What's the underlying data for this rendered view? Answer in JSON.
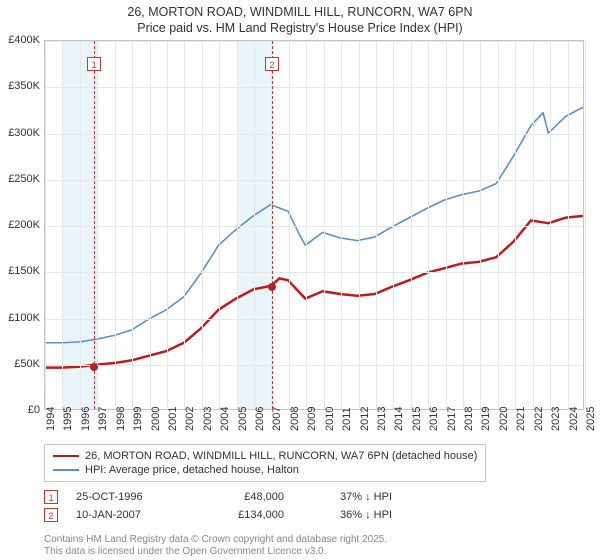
{
  "title_line1": "26, MORTON ROAD, WINDMILL HILL, RUNCORN, WA7 6PN",
  "title_line2": "Price paid vs. HM Land Registry's House Price Index (HPI)",
  "chart": {
    "type": "line",
    "x_years": [
      1994,
      1995,
      1996,
      1997,
      1998,
      1999,
      2000,
      2001,
      2002,
      2003,
      2004,
      2005,
      2006,
      2007,
      2008,
      2009,
      2010,
      2011,
      2012,
      2013,
      2014,
      2015,
      2016,
      2017,
      2018,
      2019,
      2020,
      2021,
      2022,
      2023,
      2024,
      2025
    ],
    "ylim": [
      0,
      400000
    ],
    "yticks": [
      0,
      50000,
      100000,
      150000,
      200000,
      250000,
      300000,
      350000,
      400000
    ],
    "ytick_labels": [
      "£0",
      "£50K",
      "£100K",
      "£150K",
      "£200K",
      "£250K",
      "£300K",
      "£350K",
      "£400K"
    ],
    "grid_color": "#e5e8ea",
    "background_color": "#ffffff",
    "band_color": "#eaf4fb",
    "bands": [
      [
        1995,
        1997
      ],
      [
        2005,
        2007
      ]
    ],
    "series": [
      {
        "name": "price_paid",
        "label": "26, MORTON ROAD, WINDMILL HILL, RUNCORN, WA7 6PN (detached house)",
        "color": "#c21818",
        "width": 2.5,
        "points": [
          [
            1994,
            45000
          ],
          [
            1995,
            45000
          ],
          [
            1996,
            46000
          ],
          [
            1996.82,
            48000
          ],
          [
            1998,
            50000
          ],
          [
            1999,
            53000
          ],
          [
            2000,
            58000
          ],
          [
            2001,
            63000
          ],
          [
            2002,
            72000
          ],
          [
            2003,
            88000
          ],
          [
            2004,
            108000
          ],
          [
            2005,
            120000
          ],
          [
            2006,
            130000
          ],
          [
            2007.03,
            134000
          ],
          [
            2007.5,
            142000
          ],
          [
            2008,
            140000
          ],
          [
            2008.6,
            128000
          ],
          [
            2009,
            120000
          ],
          [
            2010,
            128000
          ],
          [
            2011,
            125000
          ],
          [
            2012,
            123000
          ],
          [
            2013,
            125000
          ],
          [
            2014,
            133000
          ],
          [
            2015,
            140000
          ],
          [
            2016,
            148000
          ],
          [
            2017,
            153000
          ],
          [
            2018,
            158000
          ],
          [
            2019,
            160000
          ],
          [
            2020,
            165000
          ],
          [
            2021,
            182000
          ],
          [
            2022,
            205000
          ],
          [
            2023,
            202000
          ],
          [
            2024,
            208000
          ],
          [
            2025,
            210000
          ]
        ]
      },
      {
        "name": "hpi",
        "label": "HPI: Average price, detached house, Halton",
        "color": "#5b8fc7",
        "width": 1.6,
        "points": [
          [
            1994,
            72000
          ],
          [
            1995,
            72000
          ],
          [
            1996,
            73000
          ],
          [
            1997,
            76000
          ],
          [
            1998,
            80000
          ],
          [
            1999,
            86000
          ],
          [
            2000,
            98000
          ],
          [
            2001,
            108000
          ],
          [
            2002,
            122000
          ],
          [
            2003,
            148000
          ],
          [
            2004,
            178000
          ],
          [
            2005,
            195000
          ],
          [
            2006,
            210000
          ],
          [
            2007,
            222000
          ],
          [
            2008,
            215000
          ],
          [
            2008.7,
            188000
          ],
          [
            2009,
            178000
          ],
          [
            2010,
            192000
          ],
          [
            2011,
            186000
          ],
          [
            2012,
            183000
          ],
          [
            2013,
            187000
          ],
          [
            2014,
            198000
          ],
          [
            2015,
            208000
          ],
          [
            2016,
            218000
          ],
          [
            2017,
            227000
          ],
          [
            2018,
            233000
          ],
          [
            2019,
            237000
          ],
          [
            2020,
            245000
          ],
          [
            2021,
            275000
          ],
          [
            2022,
            308000
          ],
          [
            2022.7,
            322000
          ],
          [
            2023,
            300000
          ],
          [
            2024,
            318000
          ],
          [
            2025,
            328000
          ]
        ]
      }
    ],
    "sale_markers": [
      {
        "n": "1",
        "year": 1996.82,
        "price": 48000
      },
      {
        "n": "2",
        "year": 2007.03,
        "price": 134000
      }
    ]
  },
  "legend": {
    "rows": [
      {
        "color": "#c21818",
        "label": "26, MORTON ROAD, WINDMILL HILL, RUNCORN, WA7 6PN (detached house)"
      },
      {
        "color": "#5b8fc7",
        "label": "HPI: Average price, detached house, Halton"
      }
    ]
  },
  "sales": [
    {
      "n": "1",
      "date": "25-OCT-1996",
      "price": "£48,000",
      "diff": "37% ↓ HPI"
    },
    {
      "n": "2",
      "date": "10-JAN-2007",
      "price": "£134,000",
      "diff": "36% ↓ HPI"
    }
  ],
  "footer_line1": "Contains HM Land Registry data © Crown copyright and database right 2025.",
  "footer_line2": "This data is licensed under the Open Government Licence v3.0."
}
